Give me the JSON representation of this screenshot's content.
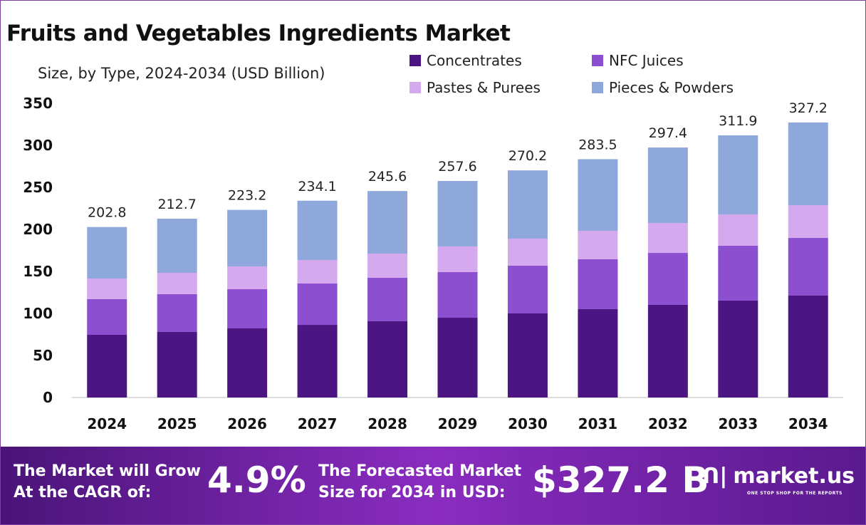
{
  "chart_data": {
    "type": "bar",
    "stacked": true,
    "title": "Fruits and Vegetables Ingredients Market",
    "subtitle": "Size, by Type, 2024-2034 (USD Billion)",
    "categories": [
      "2024",
      "2025",
      "2026",
      "2027",
      "2028",
      "2029",
      "2030",
      "2031",
      "2032",
      "2033",
      "2034"
    ],
    "series": [
      {
        "name": "Concentrates",
        "color": "#4b1681",
        "values": [
          74.6,
          78.0,
          82.2,
          86.4,
          90.7,
          94.9,
          100.0,
          105.1,
          110.2,
          115.3,
          121.2
        ]
      },
      {
        "name": "NFC Juices",
        "color": "#8b4fd0",
        "values": [
          42.4,
          44.9,
          46.6,
          49.2,
          51.7,
          54.3,
          56.8,
          59.3,
          61.8,
          65.2,
          68.6
        ]
      },
      {
        "name": "Pastes & Purees",
        "color": "#d5a9ee",
        "values": [
          24.5,
          25.4,
          27.1,
          28.0,
          28.8,
          30.5,
          32.2,
          33.9,
          35.6,
          37.3,
          39.0
        ]
      },
      {
        "name": "Pieces & Powders",
        "color": "#8fa8dc",
        "values": [
          61.3,
          64.4,
          67.3,
          70.5,
          74.4,
          77.9,
          81.2,
          85.2,
          89.8,
          94.1,
          98.4
        ]
      }
    ],
    "totals": [
      "202.8",
      "212.7",
      "223.2",
      "234.1",
      "245.6",
      "257.6",
      "270.2",
      "283.5",
      "297.4",
      "311.9",
      "327.2"
    ],
    "yticks": [
      "0",
      "50",
      "100",
      "150",
      "200",
      "250",
      "300",
      "350"
    ],
    "ylim": [
      0,
      350
    ],
    "grid": false,
    "legend": "top-right"
  },
  "footer": {
    "cagr_label_1": "The Market will Grow",
    "cagr_label_2": "At the CAGR of:",
    "cagr_value": "4.9%",
    "forecast_label_1": "The Forecasted Market",
    "forecast_label_2": "Size for 2034 in USD:",
    "forecast_value": "$327.2 B",
    "brand": "market.us",
    "tagline": "ONE STOP SHOP FOR THE REPORTS"
  }
}
